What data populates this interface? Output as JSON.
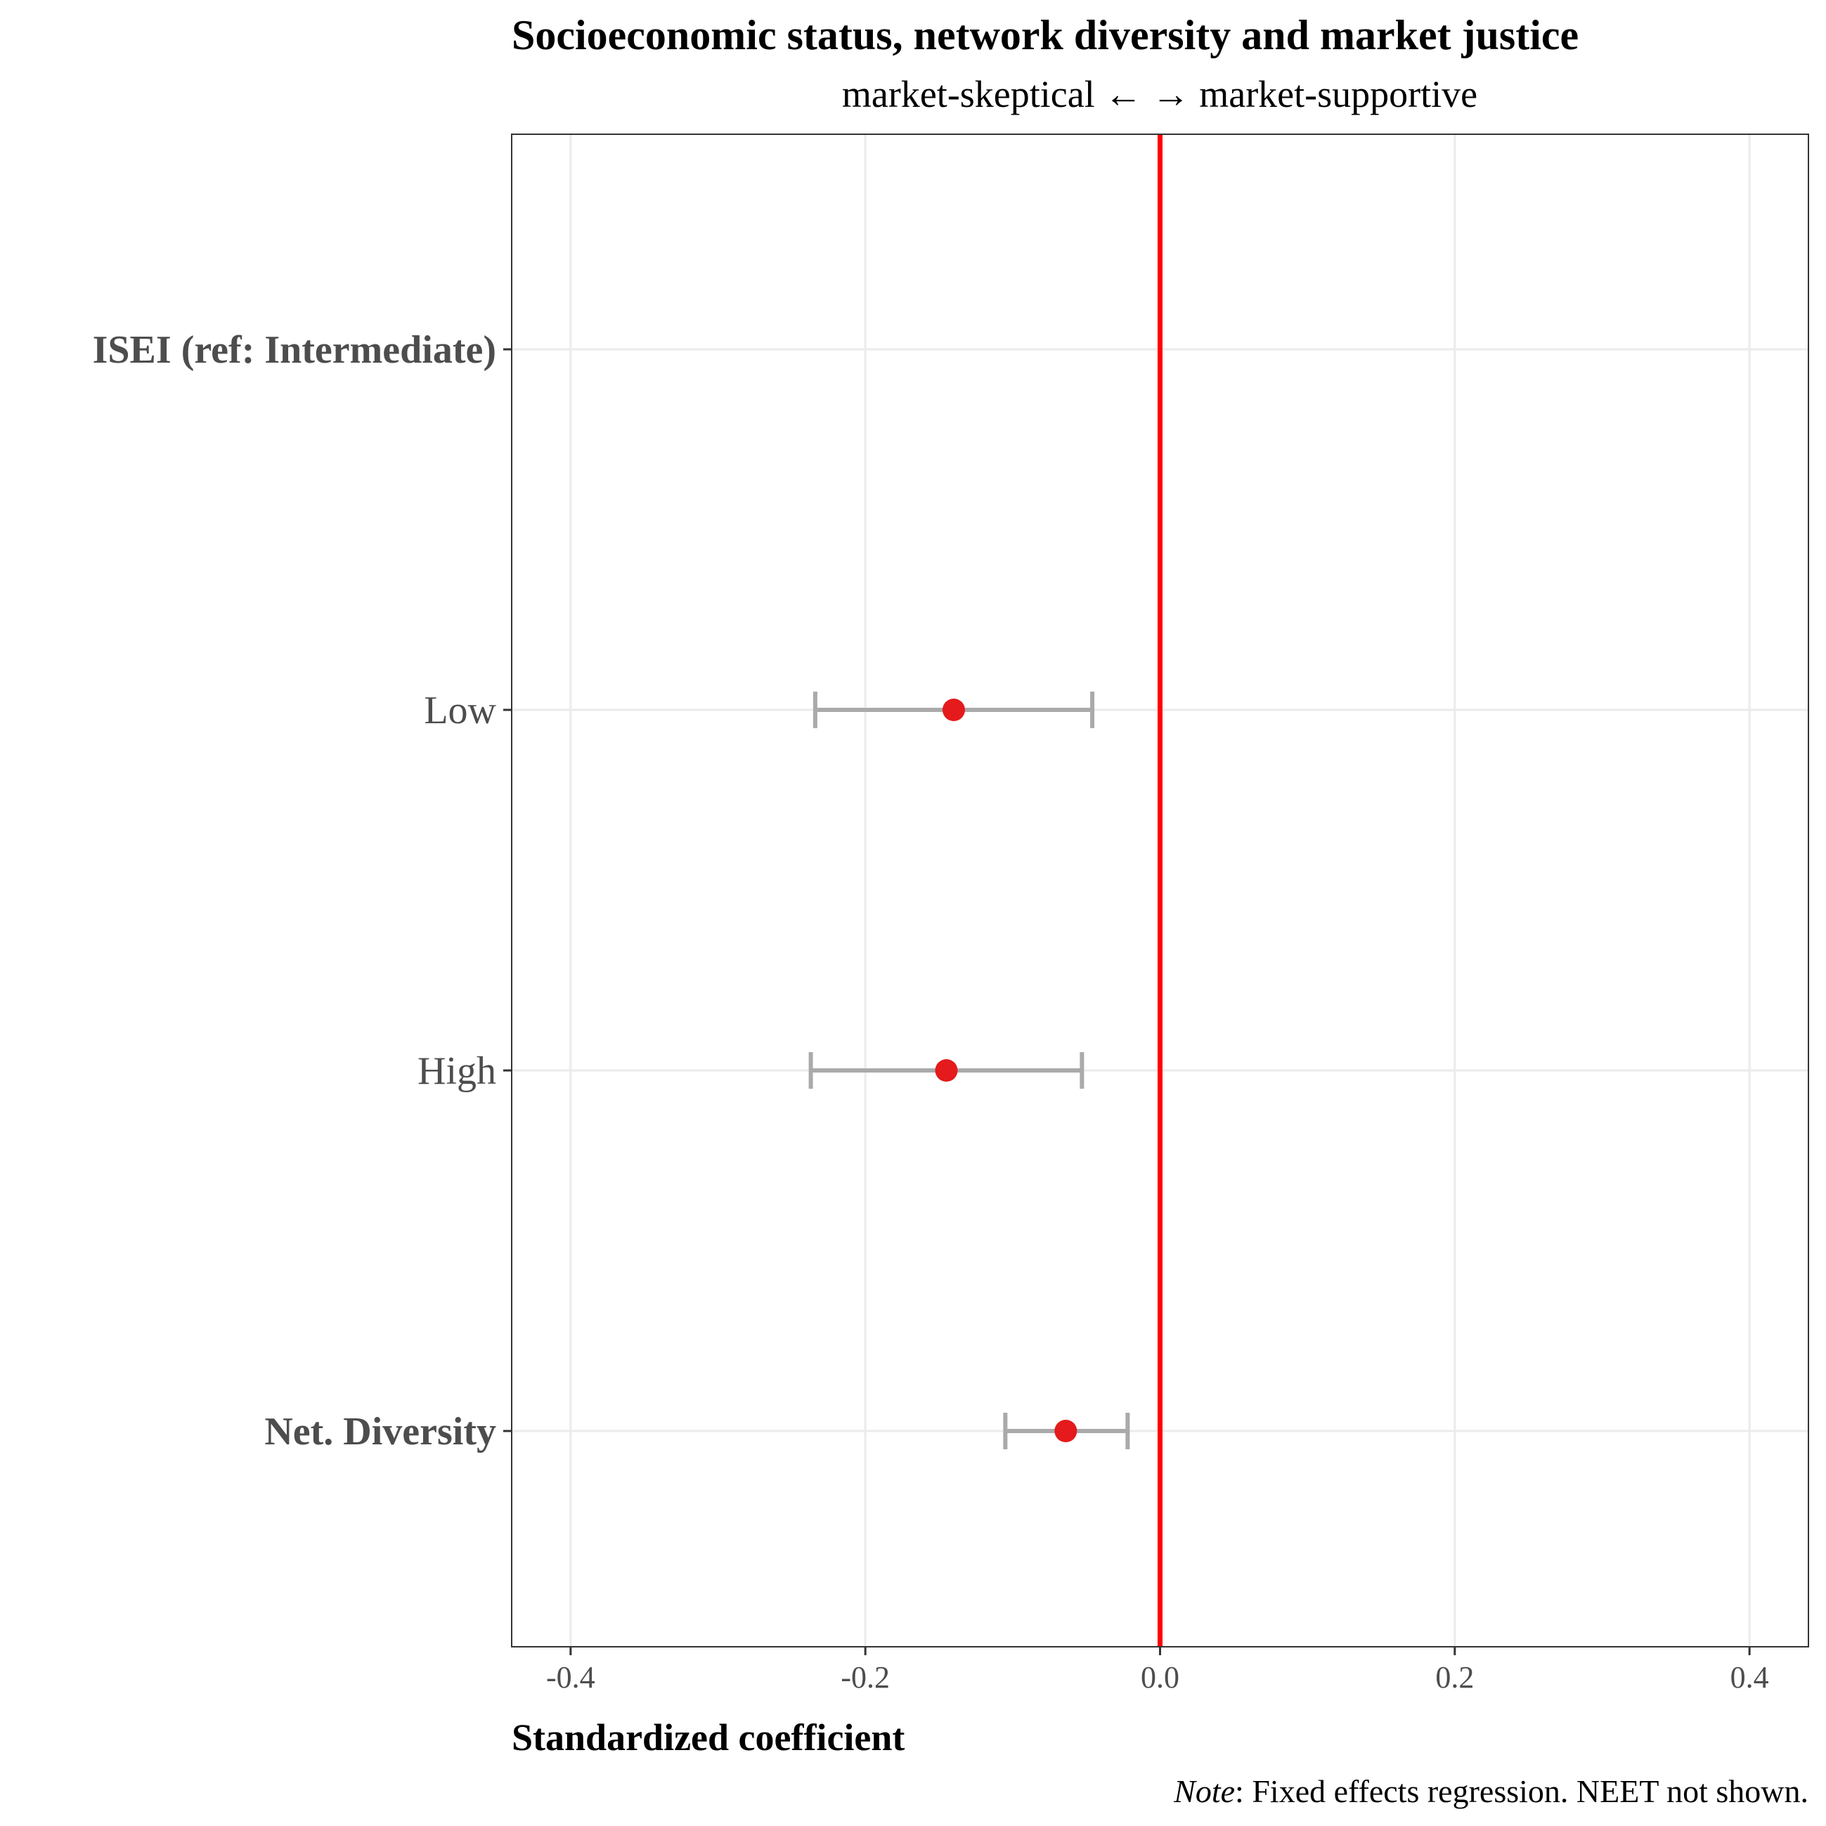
{
  "chart_data": {
    "type": "scatter",
    "title": "Socioeconomic status, network diversity and market justice",
    "subtitle": "market-skeptical ← → market-supportive",
    "xlabel": "Standardized coefficient",
    "ylabel": "",
    "caption_italic": "Note",
    "caption_rest": ": Fixed effects regression. NEET not shown.",
    "xlim": [
      -0.44,
      0.44
    ],
    "x_ticks": [
      -0.4,
      -0.2,
      0.0,
      0.2,
      0.4
    ],
    "x_tick_labels": [
      "-0.4",
      "-0.2",
      "0.0",
      "0.2",
      "0.4"
    ],
    "reference_line": 0.0,
    "categories": [
      "ISEI (ref: Intermediate)",
      "Low",
      "High",
      "Net. Diversity"
    ],
    "category_bold": [
      true,
      false,
      false,
      true
    ],
    "series": [
      {
        "points": [
          {
            "category": "Low",
            "estimate": -0.14,
            "ci_low": -0.234,
            "ci_high": -0.046
          },
          {
            "category": "High",
            "estimate": -0.145,
            "ci_low": -0.237,
            "ci_high": -0.053
          },
          {
            "category": "Net. Diversity",
            "estimate": -0.064,
            "ci_low": -0.105,
            "ci_high": -0.022
          }
        ]
      }
    ],
    "grid": true,
    "colors": {
      "point": "#e41a1c",
      "errorbar": "#aaaaaa",
      "reference_line": "#ff0000",
      "grid": "#ebebeb",
      "panel_border": "#333333"
    }
  }
}
